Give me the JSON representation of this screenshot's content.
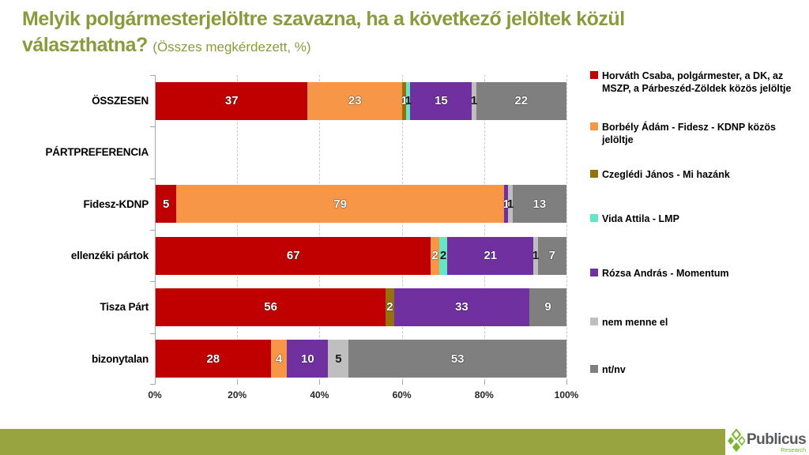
{
  "title": {
    "line1": "Melyik polgármesterjelöltre szavazna, ha a következő jelöltek közül",
    "line2": "választhatna?",
    "note": "(Összes megkérdezett, %)"
  },
  "chart_data": {
    "type": "bar",
    "variant": "horizontal-stacked",
    "title": "Melyik polgármesterjelöltre szavazna, ha a következő jelöltek közül választhatna?",
    "subtitle": "Összes megkérdezett, %",
    "categories": [
      "ÖSSZESEN",
      "PÁRTPREFERENCIA",
      "Fidesz-KDNP",
      "ellenzéki pártok",
      "Tisza Párt",
      "bizonytalan"
    ],
    "series": [
      {
        "name": "Horváth Csaba, polgármester, a DK, az MSZP, a Párbeszéd-Zöldek közös jelöltje",
        "color": "#C00000",
        "label_color": "#FFFFFF",
        "values": [
          37,
          null,
          5,
          67,
          56,
          28
        ]
      },
      {
        "name": "Borbély Ádám - Fidesz - KDNP közös jelöltje",
        "color": "#F79646",
        "label_color": "#FFFFFF",
        "values": [
          23,
          null,
          79,
          2,
          0,
          4
        ]
      },
      {
        "name": "Czeglédi János - Mi hazánk",
        "color": "#97700E",
        "label_color": "#FFFFFF",
        "values": [
          1,
          null,
          0,
          0,
          2,
          0
        ]
      },
      {
        "name": "Vida Attila - LMP",
        "color": "#66E6C4",
        "label_color": "#1A1A1A",
        "values": [
          1,
          null,
          0,
          2,
          0,
          0
        ]
      },
      {
        "name": "Rózsa András - Momentum",
        "color": "#7030A0",
        "label_color": "#FFFFFF",
        "values": [
          15,
          null,
          1,
          21,
          33,
          10
        ]
      },
      {
        "name": "nem menne el",
        "color": "#BFBFBF",
        "label_color": "#1A1A1A",
        "values": [
          1,
          null,
          1,
          1,
          0,
          5
        ]
      },
      {
        "name": "nt/nv",
        "color": "#7F7F7F",
        "label_color": "#FFFFFF",
        "values": [
          22,
          null,
          13,
          7,
          9,
          53
        ]
      }
    ],
    "x_ticks": [
      "0%",
      "20%",
      "40%",
      "60%",
      "80%",
      "100%"
    ],
    "xlim": [
      0,
      100
    ],
    "grid": "dashed vertical lines every 20%",
    "legend_position": "right"
  },
  "footer": {
    "brand": "Publicus",
    "brand_sub": "Research"
  },
  "colors": {
    "title_text": "#8B9A3D",
    "footer_bar": "#97A440",
    "logo_green": "#76B82A",
    "brand_text": "#58595B",
    "gridline": "#C9C9C9",
    "axis": "#A6A6A6"
  }
}
